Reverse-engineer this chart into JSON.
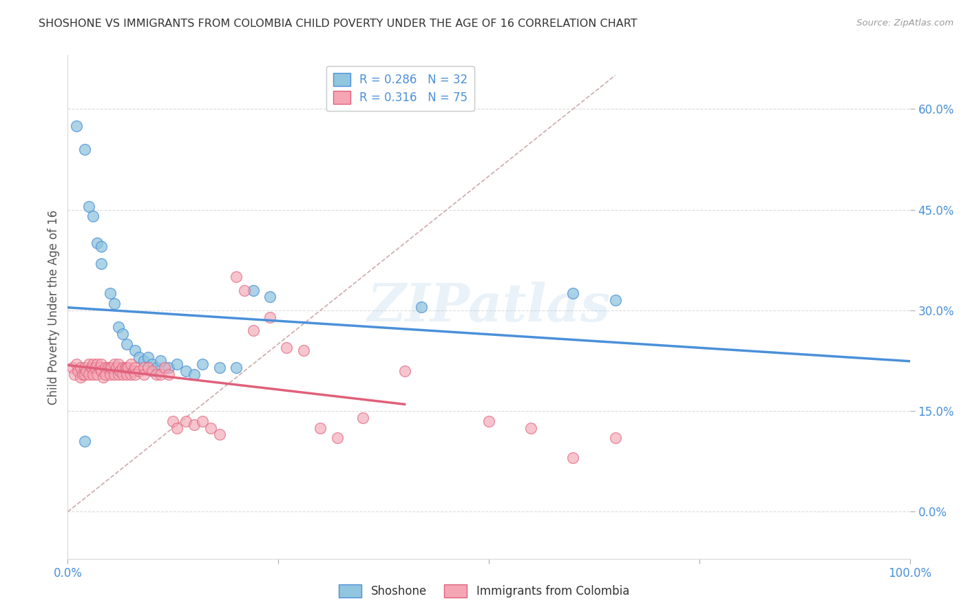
{
  "title": "SHOSHONE VS IMMIGRANTS FROM COLOMBIA CHILD POVERTY UNDER THE AGE OF 16 CORRELATION CHART",
  "source": "Source: ZipAtlas.com",
  "ylabel": "Child Poverty Under the Age of 16",
  "xlabel": "",
  "xlim": [
    0,
    1.0
  ],
  "ylim": [
    -0.07,
    0.68
  ],
  "yticks": [
    0.0,
    0.15,
    0.3,
    0.45,
    0.6
  ],
  "ytick_labels": [
    "0.0%",
    "15.0%",
    "30.0%",
    "45.0%",
    "60.0%"
  ],
  "legend_labels": [
    "Shoshone",
    "Immigrants from Colombia"
  ],
  "shoshone_R": "0.286",
  "shoshone_N": "32",
  "colombia_R": "0.316",
  "colombia_N": "75",
  "color_shoshone": "#92c5de",
  "color_colombia": "#f4a6b5",
  "color_line_shoshone": "#4a90d9",
  "color_line_colombia": "#e0607a",
  "color_diagonal": "#c8a0a0",
  "shoshone_x": [
    0.01,
    0.02,
    0.02,
    0.025,
    0.03,
    0.035,
    0.04,
    0.04,
    0.05,
    0.055,
    0.06,
    0.065,
    0.07,
    0.08,
    0.085,
    0.09,
    0.095,
    0.1,
    0.105,
    0.11,
    0.12,
    0.13,
    0.14,
    0.15,
    0.16,
    0.18,
    0.2,
    0.22,
    0.24,
    0.42,
    0.6,
    0.65
  ],
  "shoshone_y": [
    0.575,
    0.54,
    0.105,
    0.455,
    0.44,
    0.4,
    0.395,
    0.37,
    0.325,
    0.31,
    0.275,
    0.265,
    0.25,
    0.24,
    0.23,
    0.225,
    0.23,
    0.22,
    0.215,
    0.225,
    0.215,
    0.22,
    0.21,
    0.205,
    0.22,
    0.215,
    0.215,
    0.33,
    0.32,
    0.305,
    0.325,
    0.315
  ],
  "colombia_x": [
    0.005,
    0.008,
    0.01,
    0.012,
    0.015,
    0.015,
    0.018,
    0.02,
    0.02,
    0.022,
    0.025,
    0.025,
    0.028,
    0.03,
    0.03,
    0.032,
    0.035,
    0.035,
    0.038,
    0.04,
    0.04,
    0.042,
    0.045,
    0.045,
    0.048,
    0.05,
    0.05,
    0.052,
    0.055,
    0.055,
    0.058,
    0.06,
    0.06,
    0.062,
    0.065,
    0.065,
    0.068,
    0.07,
    0.07,
    0.072,
    0.075,
    0.075,
    0.078,
    0.08,
    0.08,
    0.085,
    0.09,
    0.09,
    0.095,
    0.1,
    0.105,
    0.11,
    0.115,
    0.12,
    0.125,
    0.13,
    0.14,
    0.15,
    0.16,
    0.17,
    0.18,
    0.2,
    0.21,
    0.22,
    0.24,
    0.26,
    0.28,
    0.3,
    0.32,
    0.35,
    0.4,
    0.5,
    0.55,
    0.6,
    0.65
  ],
  "colombia_y": [
    0.215,
    0.205,
    0.22,
    0.21,
    0.215,
    0.2,
    0.205,
    0.215,
    0.205,
    0.21,
    0.22,
    0.205,
    0.215,
    0.22,
    0.205,
    0.215,
    0.22,
    0.205,
    0.215,
    0.22,
    0.21,
    0.2,
    0.215,
    0.205,
    0.215,
    0.215,
    0.205,
    0.215,
    0.22,
    0.205,
    0.215,
    0.22,
    0.205,
    0.21,
    0.215,
    0.205,
    0.215,
    0.215,
    0.205,
    0.215,
    0.22,
    0.205,
    0.21,
    0.215,
    0.205,
    0.21,
    0.215,
    0.205,
    0.215,
    0.21,
    0.205,
    0.205,
    0.215,
    0.205,
    0.135,
    0.125,
    0.135,
    0.13,
    0.135,
    0.125,
    0.115,
    0.35,
    0.33,
    0.27,
    0.29,
    0.245,
    0.24,
    0.125,
    0.11,
    0.14,
    0.21,
    0.135,
    0.125,
    0.08,
    0.11
  ],
  "background_color": "#ffffff",
  "watermark": "ZIPatlas",
  "grid_color": "#d8d8d8"
}
